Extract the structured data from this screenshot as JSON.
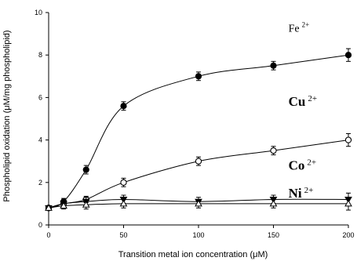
{
  "chart_data": {
    "type": "line",
    "title": "",
    "xlabel": "Transition metal ion concentration (μM)",
    "ylabel": "Phospholipid oxidation (μM/mg phospholipid)",
    "xlim": [
      0,
      200
    ],
    "ylim": [
      0,
      10
    ],
    "xticks": [
      0,
      50,
      100,
      150,
      200
    ],
    "yticks": [
      0,
      2,
      4,
      6,
      8,
      10
    ],
    "grid": false,
    "legend": "none",
    "series": [
      {
        "key": "fe",
        "name": "Fe",
        "charge": "2+",
        "marker": "filled-circle",
        "x": [
          0,
          10,
          25,
          50,
          100,
          150,
          200
        ],
        "y": [
          0.8,
          1.1,
          2.6,
          5.6,
          7.0,
          7.5,
          8.0
        ],
        "err": [
          0.1,
          0.15,
          0.2,
          0.2,
          0.2,
          0.2,
          0.3
        ]
      },
      {
        "key": "cu",
        "name": "Cu",
        "charge": "2+",
        "marker": "open-circle",
        "x": [
          0,
          10,
          25,
          50,
          100,
          150,
          200
        ],
        "y": [
          0.8,
          1.0,
          1.2,
          2.0,
          3.0,
          3.5,
          4.0
        ],
        "err": [
          0.1,
          0.1,
          0.15,
          0.2,
          0.2,
          0.2,
          0.3
        ]
      },
      {
        "key": "co",
        "name": "Co",
        "charge": "2+",
        "marker": "filled-triangle-down",
        "x": [
          0,
          10,
          25,
          50,
          100,
          150,
          200
        ],
        "y": [
          0.8,
          1.0,
          1.1,
          1.2,
          1.1,
          1.2,
          1.2
        ],
        "err": [
          0.1,
          0.15,
          0.2,
          0.2,
          0.2,
          0.2,
          0.3
        ]
      },
      {
        "key": "ni",
        "name": "Ni",
        "charge": "2+",
        "marker": "open-triangle-up",
        "x": [
          0,
          10,
          25,
          50,
          100,
          150,
          200
        ],
        "y": [
          0.8,
          0.9,
          0.95,
          1.0,
          1.0,
          1.0,
          1.0
        ],
        "err": [
          0.1,
          0.15,
          0.2,
          0.2,
          0.2,
          0.2,
          0.3
        ]
      }
    ],
    "annotations": [
      {
        "series": "fe",
        "text": "Fe",
        "sup": "2+",
        "x": 160,
        "y": 9.1,
        "bold": false
      },
      {
        "series": "cu",
        "text": "Cu",
        "sup": "2+",
        "x": 160,
        "y": 5.6,
        "bold": true
      },
      {
        "series": "co",
        "text": "Co",
        "sup": "2+",
        "x": 160,
        "y": 2.6,
        "bold": true
      },
      {
        "series": "ni",
        "text": "Ni",
        "sup": "2+",
        "x": 160,
        "y": 1.3,
        "bold": true
      }
    ]
  }
}
